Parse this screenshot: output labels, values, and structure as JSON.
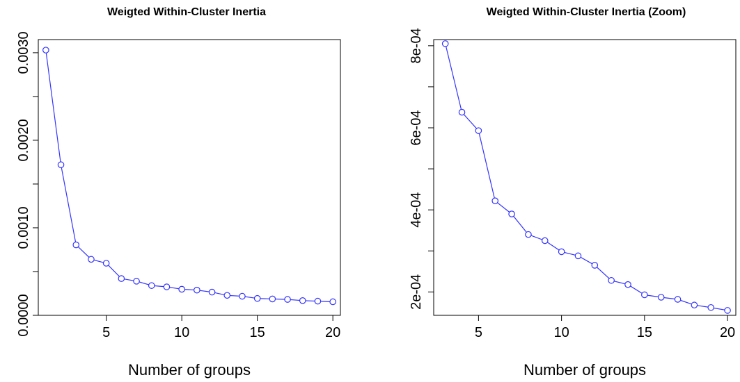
{
  "chart_data": [
    {
      "type": "line",
      "title": "Weigted Within-Cluster Inertia",
      "xlabel": "Number of groups",
      "ylabel": "",
      "xlim": [
        0.5,
        20.5
      ],
      "ylim": [
        0.0,
        0.00315
      ],
      "x_ticks": [
        "5",
        "10",
        "15",
        "20"
      ],
      "x_tick_values": [
        5,
        10,
        15,
        20
      ],
      "y_ticks": [
        "0.0000",
        "0.0010",
        "0.0020",
        "0.0030"
      ],
      "y_tick_values": [
        0.0,
        0.001,
        0.002,
        0.003
      ],
      "y_minor_tick_values": [
        0.0005,
        0.0015,
        0.0025
      ],
      "color": "#3333ff",
      "grid": false,
      "x": [
        1,
        2,
        3,
        4,
        5,
        6,
        7,
        8,
        9,
        10,
        11,
        12,
        13,
        14,
        15,
        16,
        17,
        18,
        19,
        20
      ],
      "values": [
        0.00303,
        0.00172,
        0.000805,
        0.00064,
        0.000595,
        0.00042,
        0.00039,
        0.00034,
        0.000325,
        0.000298,
        0.000288,
        0.000265,
        0.000228,
        0.000218,
        0.000193,
        0.000187,
        0.000182,
        0.000168,
        0.000162,
        0.000155
      ]
    },
    {
      "type": "line",
      "title": "Weigted Within-Cluster Inertia (Zoom)",
      "xlabel": "Number of groups",
      "ylabel": "",
      "xlim": [
        2.3,
        20.5
      ],
      "ylim": [
        0.000143,
        0.000815
      ],
      "x_ticks": [
        "5",
        "10",
        "15",
        "20"
      ],
      "x_tick_values": [
        5,
        10,
        15,
        20
      ],
      "y_ticks": [
        "2e-04",
        "4e-04",
        "6e-04",
        "8e-04"
      ],
      "y_tick_values": [
        0.0002,
        0.0004,
        0.0006,
        0.0008
      ],
      "y_minor_tick_values": [
        0.0003,
        0.0005,
        0.0007
      ],
      "color": "#3333ff",
      "grid": false,
      "x": [
        3,
        4,
        5,
        6,
        7,
        8,
        9,
        10,
        11,
        12,
        13,
        14,
        15,
        16,
        17,
        18,
        19,
        20
      ],
      "values": [
        0.000805,
        0.000638,
        0.000593,
        0.000422,
        0.00039,
        0.00034,
        0.000325,
        0.000298,
        0.000288,
        0.000265,
        0.000228,
        0.000218,
        0.000193,
        0.000187,
        0.000182,
        0.000168,
        0.000162,
        0.000155
      ]
    }
  ]
}
